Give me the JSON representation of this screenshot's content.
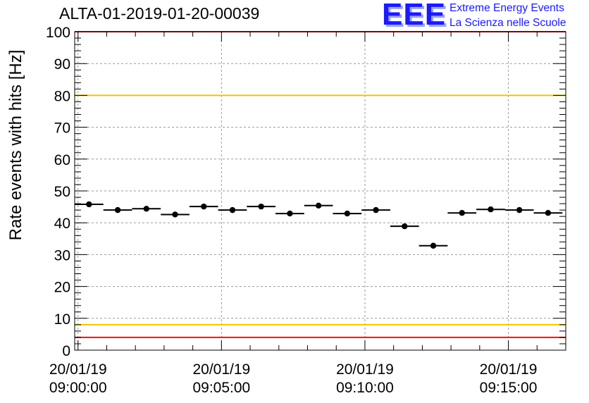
{
  "header": {
    "title": "ALTA-01-2019-01-20-00039",
    "logo_text": "EEE",
    "logo_line_1": "Extreme Energy Events",
    "logo_line_2": "La Scienza nelle Scuole"
  },
  "colors": {
    "marker": "#000000",
    "yellow_threshold": "#f2c400",
    "red_threshold": "#ee1111",
    "grid": "#9a9a9a",
    "logo_blue": "#1a1aff"
  },
  "chart_data": {
    "type": "scatter",
    "title": "ALTA-01-2019-01-20-00039",
    "xlabel": "",
    "ylabel": "Rate events with hits [Hz]",
    "ylim": [
      0,
      100
    ],
    "xlim": [
      "2019-01-20 08:59:53",
      "2019-01-20 09:17:00"
    ],
    "grid": true,
    "y_ticks": [
      0,
      10,
      20,
      30,
      40,
      50,
      60,
      70,
      80,
      90,
      100
    ],
    "x_ticks": [
      {
        "date": "20/01/19",
        "time": "09:00:00"
      },
      {
        "date": "20/01/19",
        "time": "09:05:00"
      },
      {
        "date": "20/01/19",
        "time": "09:10:00"
      },
      {
        "date": "20/01/19",
        "time": "09:15:00"
      }
    ],
    "bin_width_seconds": 60,
    "series": [
      {
        "x": [
          "09:00:23",
          "09:01:23",
          "09:02:23",
          "09:03:23",
          "09:04:23",
          "09:05:23",
          "09:06:23",
          "09:07:23",
          "09:08:23",
          "09:09:23",
          "09:10:23",
          "09:11:23",
          "09:12:23",
          "09:13:23",
          "09:14:23",
          "09:15:23",
          "09:16:23"
        ],
        "y": [
          45.8,
          44.0,
          44.4,
          42.6,
          45.1,
          44.0,
          45.1,
          42.9,
          45.4,
          42.9,
          44.0,
          38.9,
          32.8,
          43.1,
          44.2,
          44.0,
          43.1
        ]
      }
    ],
    "reference_lines": [
      {
        "y": 80,
        "color": "yellow"
      },
      {
        "y": 8,
        "color": "yellow"
      },
      {
        "y": 100,
        "color": "red"
      },
      {
        "y": 4,
        "color": "red"
      }
    ]
  }
}
